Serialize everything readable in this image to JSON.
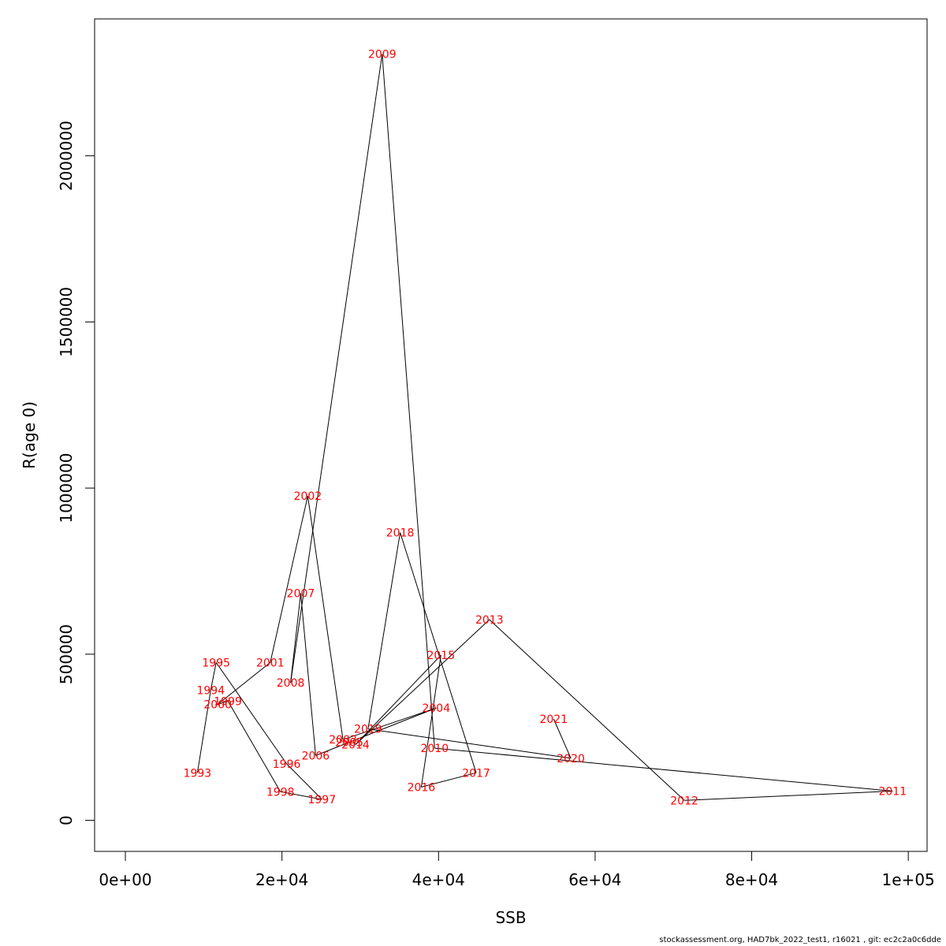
{
  "chart_data": {
    "type": "line",
    "title": "",
    "xlabel": "SSB",
    "ylabel": "R(age 0)",
    "xlim": [
      -3930,
      102400
    ],
    "ylim": [
      -93500,
      2412000
    ],
    "x_ticks": [
      0,
      20000,
      40000,
      60000,
      80000,
      100000
    ],
    "x_tick_labels": [
      "0e+00",
      "2e+04",
      "4e+04",
      "6e+04",
      "8e+04",
      "1e+05"
    ],
    "y_ticks": [
      0,
      500000,
      1000000,
      1500000,
      2000000
    ],
    "y_tick_labels": [
      "0",
      "500000",
      "1000000",
      "1500000",
      "2000000"
    ],
    "label_color": "#ff0000",
    "line_color": "#000000",
    "points": [
      {
        "year": "1993",
        "ssb": 9200,
        "rec": 143000
      },
      {
        "year": "1994",
        "ssb": 10900,
        "rec": 392000
      },
      {
        "year": "1995",
        "ssb": 11600,
        "rec": 475000
      },
      {
        "year": "1996",
        "ssb": 20600,
        "rec": 170000
      },
      {
        "year": "1997",
        "ssb": 25100,
        "rec": 63000
      },
      {
        "year": "1998",
        "ssb": 19800,
        "rec": 86000
      },
      {
        "year": "1999",
        "ssb": 13100,
        "rec": 359000
      },
      {
        "year": "2000",
        "ssb": 11800,
        "rec": 349000
      },
      {
        "year": "2001",
        "ssb": 18500,
        "rec": 475000
      },
      {
        "year": "2002",
        "ssb": 23300,
        "rec": 976000
      },
      {
        "year": "2003",
        "ssb": 27800,
        "rec": 243000
      },
      {
        "year": "2004",
        "ssb": 39700,
        "rec": 338000
      },
      {
        "year": "2005",
        "ssb": 28600,
        "rec": 235000
      },
      {
        "year": "2006",
        "ssb": 24300,
        "rec": 195000
      },
      {
        "year": "2007",
        "ssb": 22400,
        "rec": 683000
      },
      {
        "year": "2008",
        "ssb": 21100,
        "rec": 414000
      },
      {
        "year": "2009",
        "ssb": 32800,
        "rec": 2306000
      },
      {
        "year": "2010",
        "ssb": 39500,
        "rec": 217000
      },
      {
        "year": "2011",
        "ssb": 98000,
        "rec": 88000
      },
      {
        "year": "2012",
        "ssb": 71400,
        "rec": 60000
      },
      {
        "year": "2013",
        "ssb": 46500,
        "rec": 604000
      },
      {
        "year": "2014",
        "ssb": 29400,
        "rec": 228000
      },
      {
        "year": "2015",
        "ssb": 40300,
        "rec": 497000
      },
      {
        "year": "2016",
        "ssb": 37800,
        "rec": 100000
      },
      {
        "year": "2017",
        "ssb": 44800,
        "rec": 143000
      },
      {
        "year": "2018",
        "ssb": 35100,
        "rec": 866000
      },
      {
        "year": "2019",
        "ssb": 31000,
        "rec": 275000
      },
      {
        "year": "2020",
        "ssb": 56900,
        "rec": 187000
      },
      {
        "year": "2021",
        "ssb": 54700,
        "rec": 305000
      }
    ]
  },
  "footer_text": "stockassessment.org, HAD7bk_2022_test1, r16021 , git: ec2c2a0c6dde"
}
